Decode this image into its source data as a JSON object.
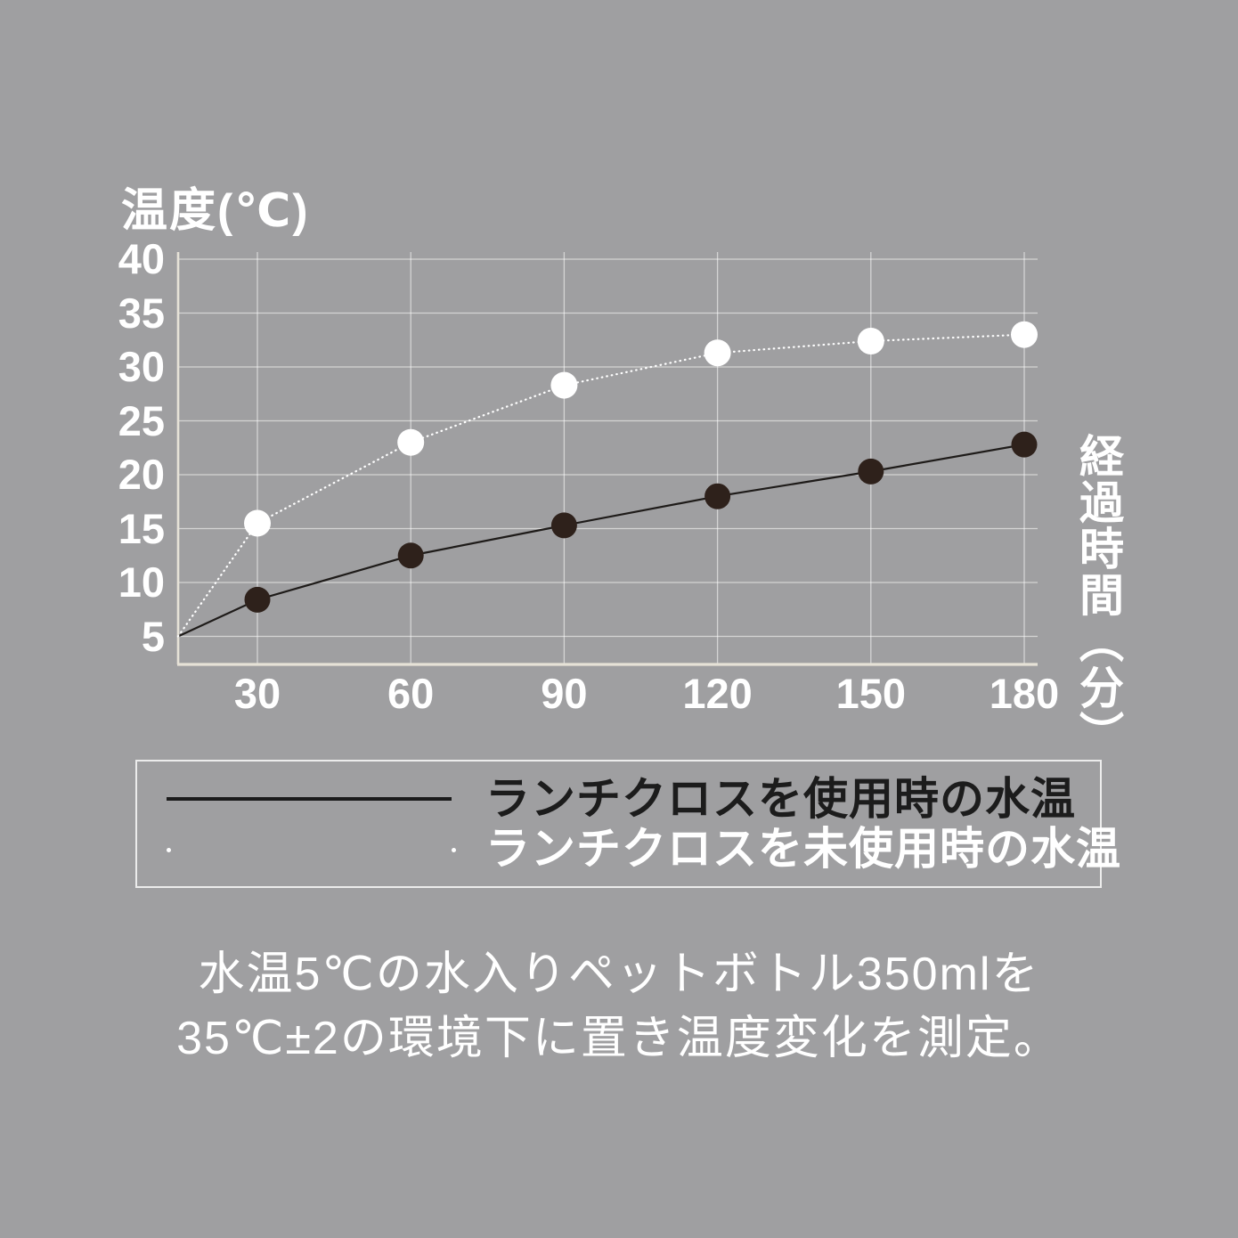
{
  "colors": {
    "background": "#9f9fa1",
    "grid": "rgba(255,255,255,0.55)",
    "axis": "#e6e2d7",
    "text_white": "#ffffff",
    "text_black": "#1c1c1c",
    "black_line": "#1e1b19",
    "black_marker": "#2e211b",
    "white_marker": "#ffffff"
  },
  "chart_data": {
    "type": "line",
    "ylabel": "温度(℃)",
    "xlabel": "経過時間（分）",
    "x": [
      30,
      60,
      90,
      120,
      150,
      180
    ],
    "x_ticks": [
      30,
      60,
      90,
      120,
      150,
      180
    ],
    "y_ticks": [
      40,
      35,
      30,
      25,
      20,
      15,
      10,
      5
    ],
    "ylim": [
      2.4,
      40.9
    ],
    "grid": true,
    "start_point": {
      "x": 0,
      "y": 5,
      "note": "both series start at 5°C on the left axis"
    },
    "series": [
      {
        "name": "ランチクロスを使用時の水温",
        "line": "solid",
        "color": "#1e1b19",
        "marker": "filled-circle",
        "marker_color": "#2e211b",
        "values": [
          8.4,
          12.5,
          15.3,
          18.0,
          20.3,
          22.8
        ]
      },
      {
        "name": "ランチクロスを未使用時の水温",
        "line": "dotted",
        "color": "#ffffff",
        "marker": "filled-circle",
        "marker_color": "#ffffff",
        "values": [
          15.5,
          23.0,
          28.3,
          31.3,
          32.4,
          33.0
        ]
      }
    ]
  },
  "legend": {
    "items": [
      {
        "label": "ランチクロスを使用時の水温",
        "swatch": "solid-black-line"
      },
      {
        "label": "ランチクロスを未使用時の水温",
        "swatch": "dotted-white-line"
      }
    ]
  },
  "caption": {
    "line1": "水温5℃の水入りペットボトル350mlを",
    "line2": "35℃±2の環境下に置き温度変化を測定。"
  }
}
